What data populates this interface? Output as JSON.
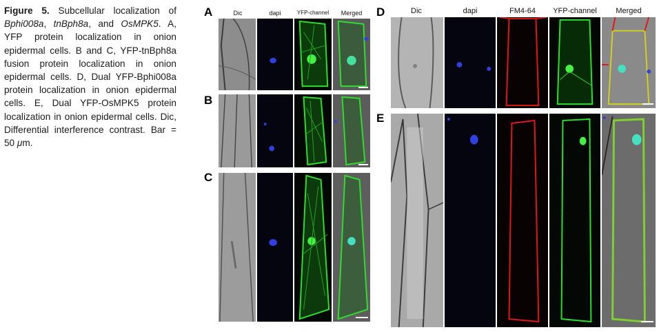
{
  "caption": {
    "fig_label": "Figure 5.",
    "t1": " Subcellular localization of ",
    "g1": "Bphi008a",
    "t2": ", ",
    "g2": "tnBph8a",
    "t3": ", and ",
    "g3": "OsMPK5",
    "t4": ". A, YFP protein localization in onion epidermal cells. B and C, YFP-tnBph8a fusion protein localization in onion epidermal cells. D, Dual YFP-Bphi008a protein localization in onion epidermal cells. E, Dual YFP-OsMPK5 protein localization in onion epidermal cells. Dic, Differential interference contrast. Bar = 50 ",
    "mu": "μ",
    "t5": "m."
  },
  "panels_left": {
    "columns": [
      "Dic",
      "dapi",
      "YFP-channel",
      "Merged"
    ],
    "letters": [
      "A",
      "B",
      "C"
    ]
  },
  "panels_right": {
    "columns": [
      "Dic",
      "dapi",
      "FM4-64",
      "YFP-channel",
      "Merged"
    ],
    "letters": [
      "D",
      "E"
    ]
  },
  "colors": {
    "dic_gray": "#8a8a8a",
    "dapi_blue": "#1a2fd6",
    "yfp_green": "#2fd62f",
    "fm464_red": "#e01818",
    "background_black": "#050505"
  }
}
